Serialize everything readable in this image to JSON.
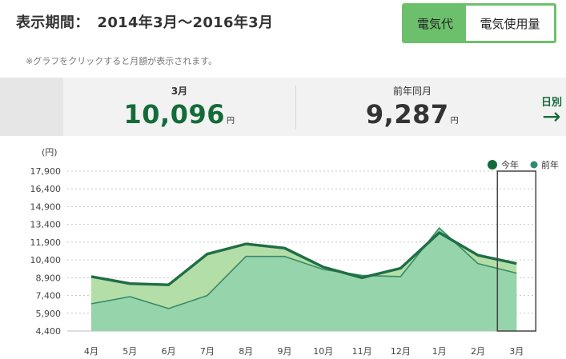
{
  "header": {
    "period_label": "表示期間：",
    "period_value": "2014年3月〜2016年3月"
  },
  "toggle": {
    "option_active": "電気代",
    "option_other": "電気使用量"
  },
  "note": "※グラフをクリックすると月額が表示されます。",
  "summary": {
    "current_month": "3月",
    "current_value": "10,096",
    "current_unit": "円",
    "previous_label": "前年同月",
    "previous_value": "9,287",
    "previous_unit": "円"
  },
  "daily_link": {
    "label": "日別",
    "arrow": "→"
  },
  "colors": {
    "brand_green": "#146b3a",
    "this_year_line": "#1f6e45",
    "last_year_line": "#3a8a64",
    "fill_this_year": "#b4dea8",
    "fill_last_year": "#96d4ab",
    "toggle_active": "#6cc06c"
  },
  "chart_data": {
    "type": "area",
    "ylabel": "(円)",
    "ylim": [
      4400,
      17900
    ],
    "yticks": [
      "17,900",
      "16,400",
      "14,900",
      "13,400",
      "11,900",
      "10,400",
      "8,900",
      "7,400",
      "5,900",
      "4,400"
    ],
    "ytick_values": [
      17900,
      16400,
      14900,
      13400,
      11900,
      10400,
      8900,
      7400,
      5900,
      4400
    ],
    "categories": [
      "4月",
      "5月",
      "6月",
      "7月",
      "8月",
      "9月",
      "10月",
      "11月",
      "12月",
      "1月",
      "2月",
      "3月"
    ],
    "series": [
      {
        "name": "今年",
        "values": [
          9000,
          8400,
          8300,
          10900,
          11750,
          11400,
          9800,
          8900,
          9700,
          12700,
          10800,
          10096
        ]
      },
      {
        "name": "前年",
        "values": [
          6700,
          7300,
          6300,
          7400,
          10700,
          10700,
          9600,
          9100,
          9000,
          13100,
          10100,
          9287
        ]
      }
    ],
    "selected_category": "3月",
    "grid": true,
    "legend_position": "top-right"
  }
}
